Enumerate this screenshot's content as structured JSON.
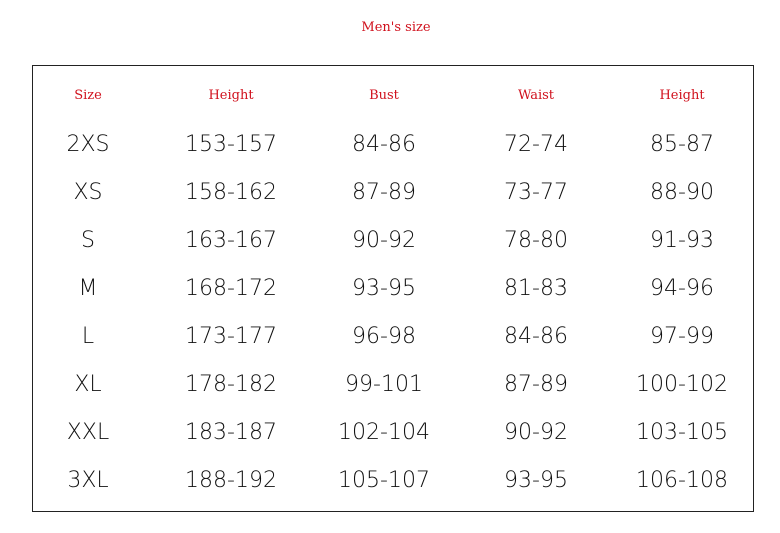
{
  "title": "Men's size",
  "headers": [
    "Size",
    "Height",
    "Bust",
    "Waist",
    "Height"
  ],
  "rows": [
    [
      "2XS",
      "153-157",
      "84-86",
      "72-74",
      "85-87"
    ],
    [
      "XS",
      "158-162",
      "87-89",
      "73-77",
      "88-90"
    ],
    [
      "S",
      "163-167",
      "90-92",
      "78-80",
      "91-93"
    ],
    [
      "M",
      "168-172",
      "93-95",
      "81-83",
      "94-96"
    ],
    [
      "L",
      "173-177",
      "96-98",
      "84-86",
      "97-99"
    ],
    [
      "XL",
      "178-182",
      "99-101",
      "87-89",
      "100-102"
    ],
    [
      "XXL",
      "183-187",
      "102-104",
      "90-92",
      "103-105"
    ],
    [
      "3XL",
      "188-192",
      "105-107",
      "93-95",
      "106-108"
    ]
  ],
  "colors": {
    "header": "#d0101c"
  }
}
